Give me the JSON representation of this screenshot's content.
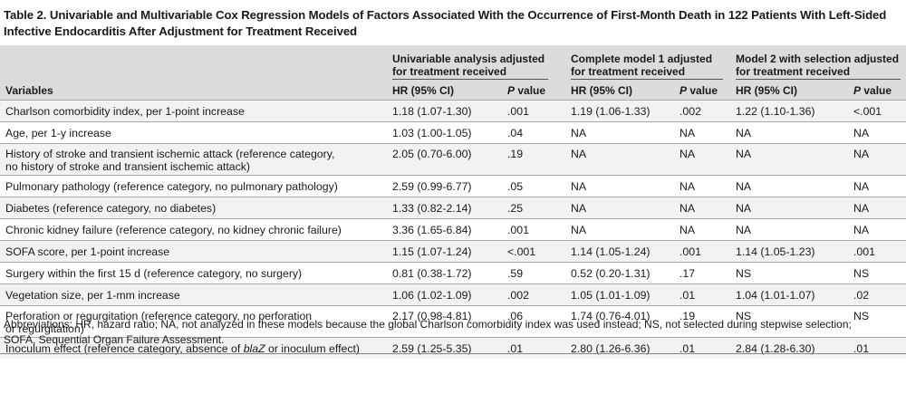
{
  "title": "Table 2. Univariable and Multivariable Cox Regression Models of Factors Associated With the Occurrence of First-Month Death in 122 Patients With Left-Sided Infective Endocarditis After Adjustment for Treatment Received",
  "header": {
    "variables_label": "Variables",
    "groups": [
      {
        "label": "Univariable analysis adjusted for treatment received",
        "hr_label": "HR (95% CI)",
        "p_label": "P",
        "p_suffix": " value"
      },
      {
        "label": "Complete model 1 adjusted for treatment received",
        "hr_label": "HR (95% CI)",
        "p_label": "P",
        "p_suffix": " value"
      },
      {
        "label": "Model 2 with selection adjusted for treatment received",
        "hr_label": "HR (95% CI)",
        "p_label": "P",
        "p_suffix": " value"
      }
    ]
  },
  "rows": [
    {
      "variable": "Charlson comorbidity index, per 1-point increase",
      "variable_line2": "",
      "u_hr": "1.18 (1.07-1.30)",
      "u_p": ".001",
      "c_hr": "1.19 (1.06-1.33)",
      "c_p": ".002",
      "m_hr": "1.22 (1.10-1.36)",
      "m_p": "<.001"
    },
    {
      "variable": "Age, per 1-y increase",
      "variable_line2": "",
      "u_hr": "1.03 (1.00-1.05)",
      "u_p": ".04",
      "c_hr": "NA",
      "c_p": "NA",
      "m_hr": "NA",
      "m_p": "NA"
    },
    {
      "variable": "History of stroke and transient ischemic attack (reference category,",
      "variable_line2": "no history of stroke and transient ischemic attack)",
      "u_hr": "2.05 (0.70-6.00)",
      "u_p": ".19",
      "c_hr": "NA",
      "c_p": "NA",
      "m_hr": "NA",
      "m_p": "NA"
    },
    {
      "variable": "Pulmonary pathology (reference category, no pulmonary pathology)",
      "variable_line2": "",
      "u_hr": "2.59 (0.99-6.77)",
      "u_p": ".05",
      "c_hr": "NA",
      "c_p": "NA",
      "m_hr": "NA",
      "m_p": "NA"
    },
    {
      "variable": "Diabetes (reference category, no diabetes)",
      "variable_line2": "",
      "u_hr": "1.33 (0.82-2.14)",
      "u_p": ".25",
      "c_hr": "NA",
      "c_p": "NA",
      "m_hr": "NA",
      "m_p": "NA"
    },
    {
      "variable": "Chronic kidney failure (reference category, no kidney chronic failure)",
      "variable_line2": "",
      "u_hr": "3.36 (1.65-6.84)",
      "u_p": ".001",
      "c_hr": "NA",
      "c_p": "NA",
      "m_hr": "NA",
      "m_p": "NA"
    },
    {
      "variable": "SOFA score, per 1-point increase",
      "variable_line2": "",
      "u_hr": "1.15 (1.07-1.24)",
      "u_p": "<.001",
      "c_hr": "1.14 (1.05-1.24)",
      "c_p": ".001",
      "m_hr": "1.14 (1.05-1.23)",
      "m_p": ".001"
    },
    {
      "variable": "Surgery within the first 15 d (reference category, no surgery)",
      "variable_line2": "",
      "u_hr": "0.81 (0.38-1.72)",
      "u_p": ".59",
      "c_hr": "0.52 (0.20-1.31)",
      "c_p": ".17",
      "m_hr": "NS",
      "m_p": "NS"
    },
    {
      "variable": "Vegetation size, per 1-mm increase",
      "variable_line2": "",
      "u_hr": "1.06 (1.02-1.09)",
      "u_p": ".002",
      "c_hr": "1.05 (1.01-1.09)",
      "c_p": ".01",
      "m_hr": "1.04 (1.01-1.07)",
      "m_p": ".02"
    },
    {
      "variable": "Perforation or regurgitation (reference category, no perforation",
      "variable_line2": "or regurgitation)",
      "u_hr": "2.17 (0.98-4.81)",
      "u_p": ".06",
      "c_hr": "1.74 (0.76-4.01)",
      "c_p": ".19",
      "m_hr": "NS",
      "m_p": "NS"
    },
    {
      "variable": "Inoculum effect (reference category, absence of ",
      "variable_italic": "blaZ",
      "variable_tail": " or inoculum effect)",
      "variable_line2": "",
      "u_hr": "2.59 (1.25-5.35)",
      "u_p": ".01",
      "c_hr": "2.80 (1.26-6.36)",
      "c_p": ".01",
      "m_hr": "2.84 (1.28-6.30)",
      "m_p": ".01"
    }
  ],
  "footnote": {
    "line1": "Abbreviations: HR, hazard ratio; NA, not analyzed in these models because the global Charlson comorbidity index was used instead; NS, not selected during stepwise selection;",
    "line2": "SOFA, Sequential Organ Failure Assessment."
  }
}
